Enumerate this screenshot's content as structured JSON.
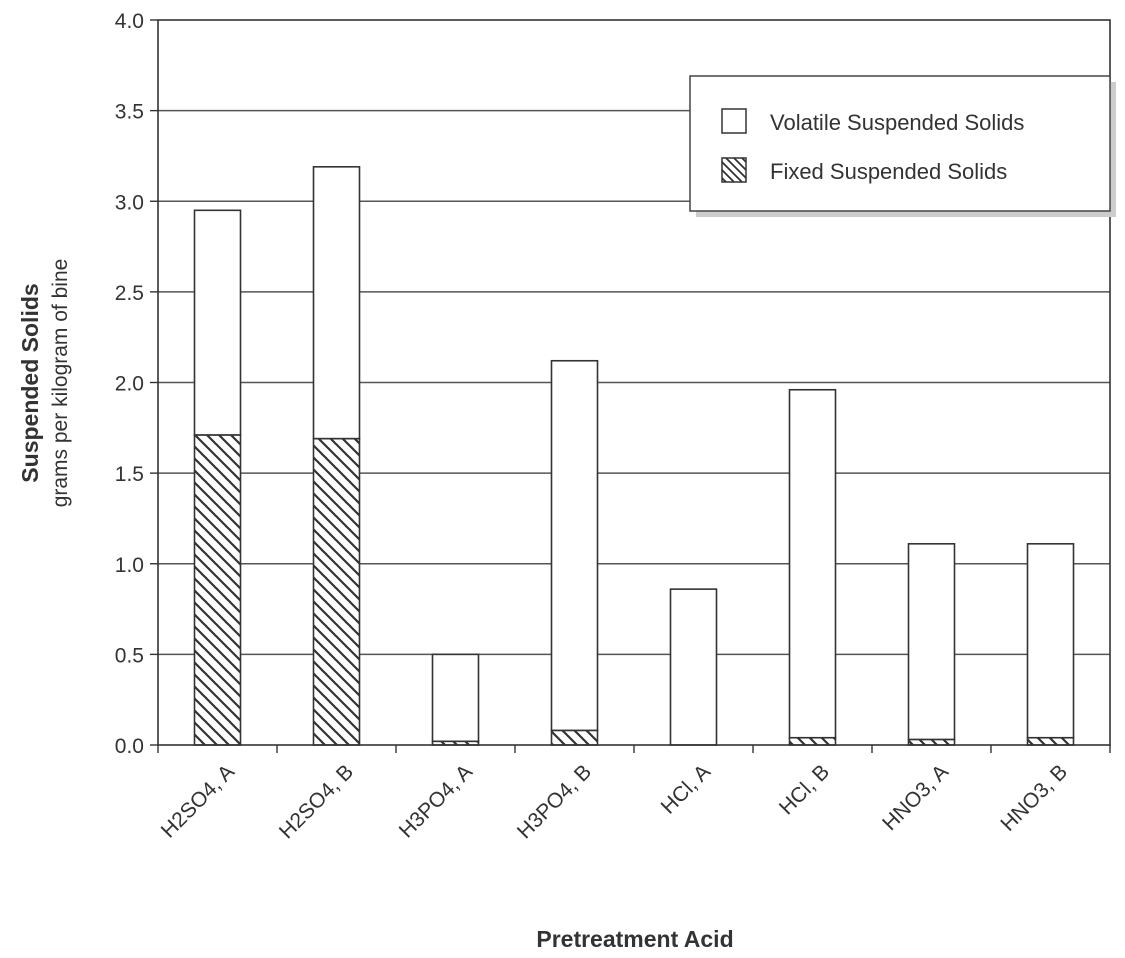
{
  "chart_data": {
    "type": "bar",
    "stacked": true,
    "title": "",
    "xlabel": "Pretreatment Acid",
    "ylabel": "Suspended Solids",
    "ylabel_sub": "grams per kilogram of bine",
    "ylim": [
      0,
      4.0
    ],
    "yticks": [
      "0.0",
      "0.5",
      "1.0",
      "1.5",
      "2.0",
      "2.5",
      "3.0",
      "3.5",
      "4.0"
    ],
    "grid": true,
    "legend_position": "top-right",
    "categories": [
      "H2SO4, A",
      "H2SO4, B",
      "H3PO4, A",
      "H3PO4, B",
      "HCl, A",
      "HCl, B",
      "HNO3, A",
      "HNO3, B"
    ],
    "series": [
      {
        "name": "Fixed Suspended Solids",
        "pattern": "hatched",
        "values": [
          1.71,
          1.69,
          0.02,
          0.08,
          0.0,
          0.04,
          0.03,
          0.04
        ]
      },
      {
        "name": "Volatile Suspended Solids",
        "pattern": "open",
        "values": [
          1.24,
          1.5,
          0.48,
          2.04,
          0.86,
          1.92,
          1.08,
          1.07
        ]
      }
    ],
    "legend": [
      {
        "label": "Volatile Suspended Solids",
        "pattern": "open"
      },
      {
        "label": "Fixed Suspended Solids",
        "pattern": "hatched"
      }
    ],
    "colors": {
      "line": "#333333",
      "grid": "#555555",
      "fill": "#ffffff"
    }
  }
}
